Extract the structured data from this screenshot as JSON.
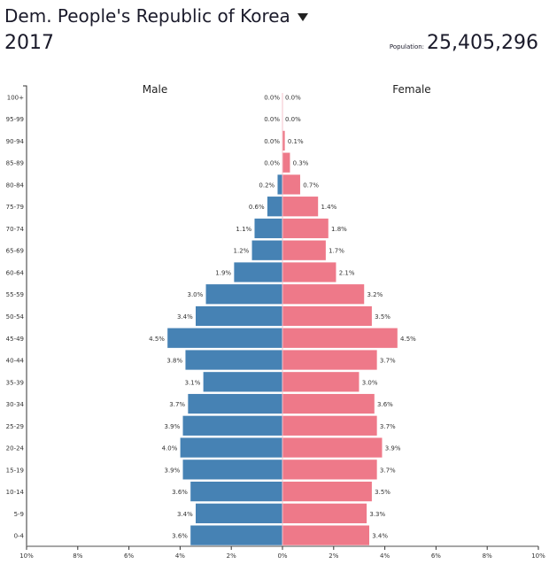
{
  "header": {
    "country": "Dem. People's Republic of Korea",
    "year": "2017",
    "population_label": "Population:",
    "population_value": "25,405,296"
  },
  "chart_data": {
    "type": "bar",
    "orientation": "horizontal-pyramid",
    "categories": [
      "100+",
      "95-99",
      "90-94",
      "85-89",
      "80-84",
      "75-79",
      "70-74",
      "65-69",
      "60-64",
      "55-59",
      "50-54",
      "45-49",
      "40-44",
      "35-39",
      "30-34",
      "25-29",
      "20-24",
      "15-19",
      "10-14",
      "5-9",
      "0-4"
    ],
    "series": [
      {
        "name": "Male",
        "color": "#4682b4",
        "values": [
          0.0,
          0.0,
          0.0,
          0.0,
          0.2,
          0.6,
          1.1,
          1.2,
          1.9,
          3.0,
          3.4,
          4.5,
          3.8,
          3.1,
          3.7,
          3.9,
          4.0,
          3.9,
          3.6,
          3.4,
          3.6
        ],
        "labels": [
          "0.0%",
          "0.0%",
          "0.0%",
          "0.0%",
          "0.2%",
          "0.6%",
          "1.1%",
          "1.2%",
          "1.9%",
          "3.0%",
          "3.4%",
          "4.5%",
          "3.8%",
          "3.1%",
          "3.7%",
          "3.9%",
          "4.0%",
          "3.9%",
          "3.6%",
          "3.4%",
          "3.6%"
        ]
      },
      {
        "name": "Female",
        "color": "#ee7989",
        "values": [
          0.0,
          0.0,
          0.1,
          0.3,
          0.7,
          1.4,
          1.8,
          1.7,
          2.1,
          3.2,
          3.5,
          4.5,
          3.7,
          3.0,
          3.6,
          3.7,
          3.9,
          3.7,
          3.5,
          3.3,
          3.4
        ],
        "labels": [
          "0.0%",
          "0.0%",
          "0.1%",
          "0.3%",
          "0.7%",
          "1.4%",
          "1.8%",
          "1.7%",
          "2.1%",
          "3.2%",
          "3.5%",
          "4.5%",
          "3.7%",
          "3.0%",
          "3.6%",
          "3.7%",
          "3.9%",
          "3.7%",
          "3.5%",
          "3.3%",
          "3.4%"
        ]
      }
    ],
    "xlim": [
      -10,
      10
    ],
    "xticks": [
      -10,
      -8,
      -6,
      -4,
      -2,
      0,
      2,
      4,
      6,
      8,
      10
    ],
    "xtick_labels": [
      "10%",
      "8%",
      "6%",
      "4%",
      "2%",
      "0%",
      "2%",
      "4%",
      "6%",
      "8%",
      "10%"
    ],
    "xlabel": "",
    "ylabel": "",
    "title": "Dem. People's Republic of Korea"
  }
}
